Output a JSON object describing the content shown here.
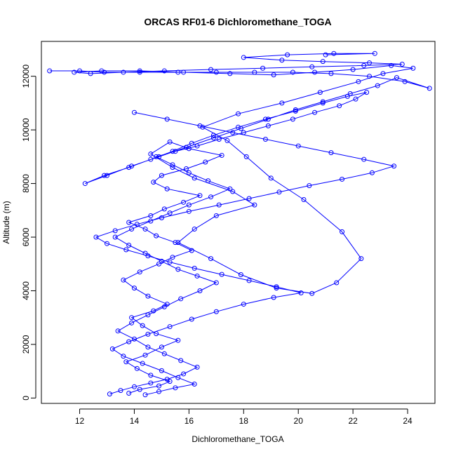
{
  "chart_data": {
    "type": "scatter",
    "title": "ORCAS RF01-6 Dichloromethane_TOGA",
    "xlabel": "Dichloromethane_TOGA",
    "ylabel": "Altitude (m)",
    "xlim": [
      10.6,
      25.0
    ],
    "ylim": [
      -200,
      13300
    ],
    "xticks": [
      12,
      14,
      16,
      18,
      20,
      22,
      24
    ],
    "yticks": [
      0,
      2000,
      4000,
      6000,
      8000,
      10000,
      12000
    ],
    "grid": false,
    "legend": "none",
    "marker": "open-circle",
    "connected": true,
    "color": "#0000ff",
    "series": [
      {
        "x": [
          13.8,
          14.2,
          14.9,
          15.3,
          14.6,
          14.1,
          13.7,
          14.4,
          15.0,
          15.6,
          14.8,
          14.3,
          13.9,
          14.7,
          15.2,
          14.5,
          14.0,
          13.6,
          14.2,
          14.9,
          15.4,
          16.1,
          15.5,
          14.8,
          14.4,
          13.8,
          14.6,
          15.1,
          15.8,
          16.4,
          15.2,
          14.7,
          15.0,
          15.9,
          16.6,
          17.2,
          16.0,
          15.3,
          14.6,
          15.4,
          16.2,
          17.6,
          18.4,
          17.0,
          16.2,
          15.6,
          16.8,
          17.9,
          19.2,
          20.5,
          21.4,
          22.3,
          21.6,
          20.2,
          19.0,
          18.1,
          17.4,
          16.5,
          17.8,
          19.4,
          20.8,
          22.2,
          23.1,
          24.2,
          23.4,
          22.0,
          20.6,
          19.1,
          17.5,
          15.8,
          14.2,
          12.8,
          11.8,
          12.4,
          13.6,
          15.1,
          16.8,
          18.7,
          20.5,
          22.4,
          23.8,
          22.6,
          20.9,
          19.4,
          18.0,
          19.6,
          21.3,
          22.8,
          21.0
        ],
        "y": [
          180,
          320,
          450,
          620,
          850,
          1100,
          1350,
          1600,
          1900,
          2150,
          2400,
          2700,
          3000,
          3250,
          3500,
          3800,
          4100,
          4400,
          4700,
          5000,
          5250,
          5500,
          5800,
          6050,
          6300,
          6550,
          6800,
          7050,
          7300,
          7550,
          7800,
          8050,
          8300,
          8550,
          8800,
          9050,
          9300,
          9550,
          9100,
          8600,
          8200,
          7700,
          7200,
          6800,
          6300,
          5800,
          5200,
          4600,
          4100,
          3900,
          4300,
          5200,
          6200,
          7400,
          8200,
          9000,
          9600,
          10100,
          10600,
          11000,
          11400,
          11800,
          12100,
          12300,
          12400,
          12250,
          12150,
          12050,
          12100,
          12150,
          12200,
          12200,
          12150,
          12100,
          12150,
          12200,
          12250,
          12300,
          12350,
          12400,
          12450,
          12500,
          12550,
          12600,
          12700,
          12800,
          12850,
          12850,
          12800
        ]
      },
      {
        "x": [
          13.1,
          13.5,
          14.0,
          14.6,
          15.2,
          15.8,
          16.3,
          15.7,
          15.1,
          14.5,
          14.0,
          13.4,
          13.9,
          14.5,
          15.1,
          15.7,
          16.4,
          17.0,
          16.3,
          15.6,
          15.0,
          14.4,
          13.8,
          13.3,
          13.9,
          14.6,
          15.3,
          16.0,
          16.8,
          17.5,
          16.7,
          16.0,
          15.4,
          14.8,
          15.5,
          16.3,
          17.1,
          18.0,
          18.9,
          19.8,
          20.6,
          21.5,
          22.1,
          22.5,
          21.8,
          20.9,
          19.9,
          18.8,
          17.8,
          16.9,
          16.1,
          15.4,
          14.6,
          13.8,
          12.9,
          12.2,
          13.0,
          13.9,
          14.9,
          15.9,
          16.9,
          17.9,
          18.9,
          19.9,
          20.9,
          21.9,
          22.9,
          23.6,
          24.8,
          23.9,
          22.6,
          21.2,
          19.8,
          18.4,
          17.0,
          15.6,
          14.2,
          12.9,
          12.0,
          10.9
        ],
        "y": [
          150,
          280,
          420,
          560,
          700,
          900,
          1150,
          1400,
          1650,
          1900,
          2200,
          2500,
          2800,
          3100,
          3400,
          3700,
          4000,
          4300,
          4550,
          4800,
          5100,
          5400,
          5700,
          6000,
          6300,
          6600,
          6900,
          7200,
          7500,
          7800,
          8100,
          8400,
          8700,
          9000,
          9200,
          9400,
          9650,
          9900,
          10150,
          10400,
          10650,
          10900,
          11150,
          11400,
          11250,
          11000,
          10700,
          10400,
          10100,
          9800,
          9500,
          9200,
          8900,
          8600,
          8300,
          8000,
          8300,
          8650,
          9000,
          9350,
          9700,
          10050,
          10400,
          10750,
          11050,
          11350,
          11650,
          11950,
          11550,
          11800,
          12000,
          12100,
          12150,
          12150,
          12150,
          12150,
          12150,
          12150,
          12200,
          12200
        ]
      },
      {
        "x": [
          14.4,
          14.9,
          15.5,
          16.2,
          15.6,
          15.0,
          14.3,
          13.6,
          13.2,
          13.8,
          14.5,
          15.3,
          16.1,
          17.0,
          18.0,
          19.1,
          20.1,
          19.2,
          18.2,
          17.2,
          16.2,
          15.3,
          14.5,
          13.7,
          13.0,
          12.6,
          13.3,
          14.1,
          15.0,
          16.0,
          17.1,
          18.2,
          19.3,
          20.4,
          21.6,
          22.7,
          23.5,
          22.4,
          21.2,
          20.0,
          18.8,
          17.6,
          16.4,
          15.2,
          14.0
        ],
        "y": [
          120,
          240,
          380,
          520,
          760,
          1020,
          1290,
          1560,
          1830,
          2100,
          2380,
          2660,
          2940,
          3220,
          3500,
          3750,
          3920,
          4150,
          4380,
          4610,
          4840,
          5070,
          5300,
          5530,
          5760,
          6000,
          6240,
          6480,
          6720,
          6960,
          7200,
          7440,
          7680,
          7920,
          8160,
          8400,
          8650,
          8900,
          9150,
          9400,
          9650,
          9900,
          10150,
          10400,
          10650
        ]
      }
    ]
  }
}
